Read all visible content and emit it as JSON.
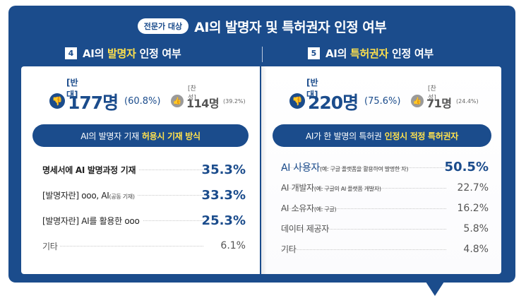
{
  "header": {
    "badge": "전문가 대상",
    "title": "AI의 발명자 및 특허권자 인정 여부"
  },
  "left": {
    "number": "4",
    "title_prefix": "AI의 ",
    "title_highlight": "발명자",
    "title_suffix": " 인정 여부",
    "oppose_label": "[반대]",
    "oppose_count": "177명",
    "oppose_pct": "(60.8%)",
    "support_label": "[찬성]",
    "support_count": "114명",
    "support_pct": "(39.2%)",
    "pill_text": "AI의 발명자 기재",
    "pill_highlight": "허용시 기재 방식",
    "rows": [
      {
        "label": "명세서에 AI 발명과정 기재",
        "note": "",
        "value": "35.3%"
      },
      {
        "label": "[발명자란] ooo, AI",
        "note": "(공동 기재)",
        "value": "33.3%"
      },
      {
        "label": "[발명자란] AI를 활용한 ooo",
        "note": "",
        "value": "25.3%"
      },
      {
        "label": "기타",
        "note": "",
        "value": "6.1%"
      }
    ]
  },
  "right": {
    "number": "5",
    "title_prefix": "AI의 ",
    "title_highlight": "특허권자",
    "title_suffix": " 인정 여부",
    "oppose_label": "[반대]",
    "oppose_count": "220명",
    "oppose_pct": "(75.6%)",
    "support_label": "[찬성]",
    "support_count": "71명",
    "support_pct": "(24.4%)",
    "pill_text": "AI가 한 발명의 특허권",
    "pill_highlight": "인정시 적정 특허권자",
    "rows": [
      {
        "label": "AI 사용자",
        "note": "(예: 구글 플랫폼을 활용하여 발명한 자)",
        "value": "50.5%"
      },
      {
        "label": "AI 개발자",
        "note": "(예: 구글의 AI 플랫폼 개발자)",
        "value": "22.7%"
      },
      {
        "label": "AI 소유자",
        "note": "(예: 구글)",
        "value": "16.2%"
      },
      {
        "label": "데이터 제공자",
        "note": "",
        "value": "5.8%"
      },
      {
        "label": "기타",
        "note": "",
        "value": "4.8%"
      }
    ]
  },
  "colors": {
    "primary": "#1b4c8c",
    "highlight": "#ffe14d"
  },
  "icons": {
    "oppose": "thumbs-down-icon",
    "support": "thumbs-up-icon"
  }
}
